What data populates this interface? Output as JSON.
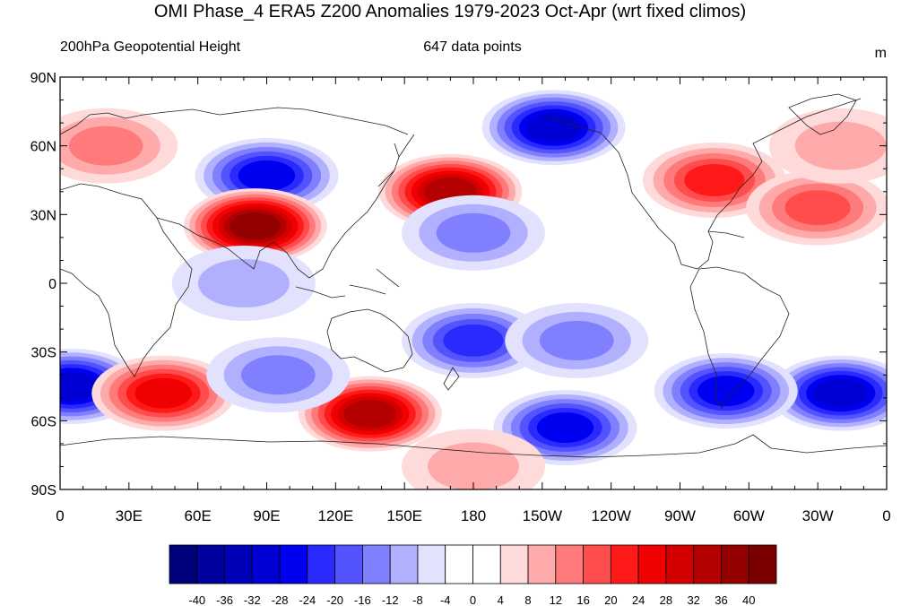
{
  "title": "OMI Phase_4 ERA5 Z200 Anomalies 1979-2023 Oct-Apr (wrt fixed climos)",
  "left_string": "200hPa Geopotential Height",
  "center_string": "647 data points",
  "right_string": "m",
  "lat_labels": [
    "90N",
    "60N",
    "30N",
    "0",
    "30S",
    "60S",
    "90S"
  ],
  "lon_labels": [
    "0",
    "30E",
    "60E",
    "90E",
    "120E",
    "150E",
    "180",
    "150W",
    "120W",
    "90W",
    "60W",
    "30W",
    "0"
  ],
  "colorbar": {
    "labels": [
      "-40",
      "-36",
      "-32",
      "-28",
      "-24",
      "-20",
      "-16",
      "-12",
      "-8",
      "-4",
      "0",
      "4",
      "8",
      "12",
      "16",
      "20",
      "24",
      "28",
      "32",
      "36",
      "40"
    ],
    "colors": [
      "#00007a",
      "#00009c",
      "#0000b8",
      "#0000d4",
      "#0000f0",
      "#2a2aff",
      "#5454ff",
      "#8080ff",
      "#b0b0ff",
      "#e2e2ff",
      "#ffffff",
      "#ffffff",
      "#ffdada",
      "#ffaaaa",
      "#ff7a7a",
      "#ff4c4c",
      "#ff1a1a",
      "#f00000",
      "#d40000",
      "#b40000",
      "#940000",
      "#7a0000"
    ]
  },
  "anomaly_centers": [
    {
      "lon": 90,
      "lat": 47,
      "value": -24
    },
    {
      "lon": 85,
      "lat": 25,
      "value": 36
    },
    {
      "lon": 170,
      "lat": 40,
      "value": 32
    },
    {
      "lon": 215,
      "lat": 68,
      "value": -28
    },
    {
      "lon": 285,
      "lat": 45,
      "value": 20
    },
    {
      "lon": 330,
      "lat": 33,
      "value": 16
    },
    {
      "lon": 180,
      "lat": 22,
      "value": -12
    },
    {
      "lon": 80,
      "lat": 0,
      "value": -8
    },
    {
      "lon": 180,
      "lat": -25,
      "value": -20
    },
    {
      "lon": 5,
      "lat": -45,
      "value": -28
    },
    {
      "lon": 340,
      "lat": -48,
      "value": -28
    },
    {
      "lon": 290,
      "lat": -47,
      "value": -24
    },
    {
      "lon": 45,
      "lat": -48,
      "value": 24
    },
    {
      "lon": 135,
      "lat": -57,
      "value": 32
    },
    {
      "lon": 220,
      "lat": -63,
      "value": -24
    },
    {
      "lon": 225,
      "lat": -25,
      "value": -12
    },
    {
      "lon": 20,
      "lat": 60,
      "value": 12
    },
    {
      "lon": 340,
      "lat": 60,
      "value": 8
    },
    {
      "lon": 95,
      "lat": -40,
      "value": -12
    },
    {
      "lon": 180,
      "lat": -80,
      "value": 8
    }
  ]
}
